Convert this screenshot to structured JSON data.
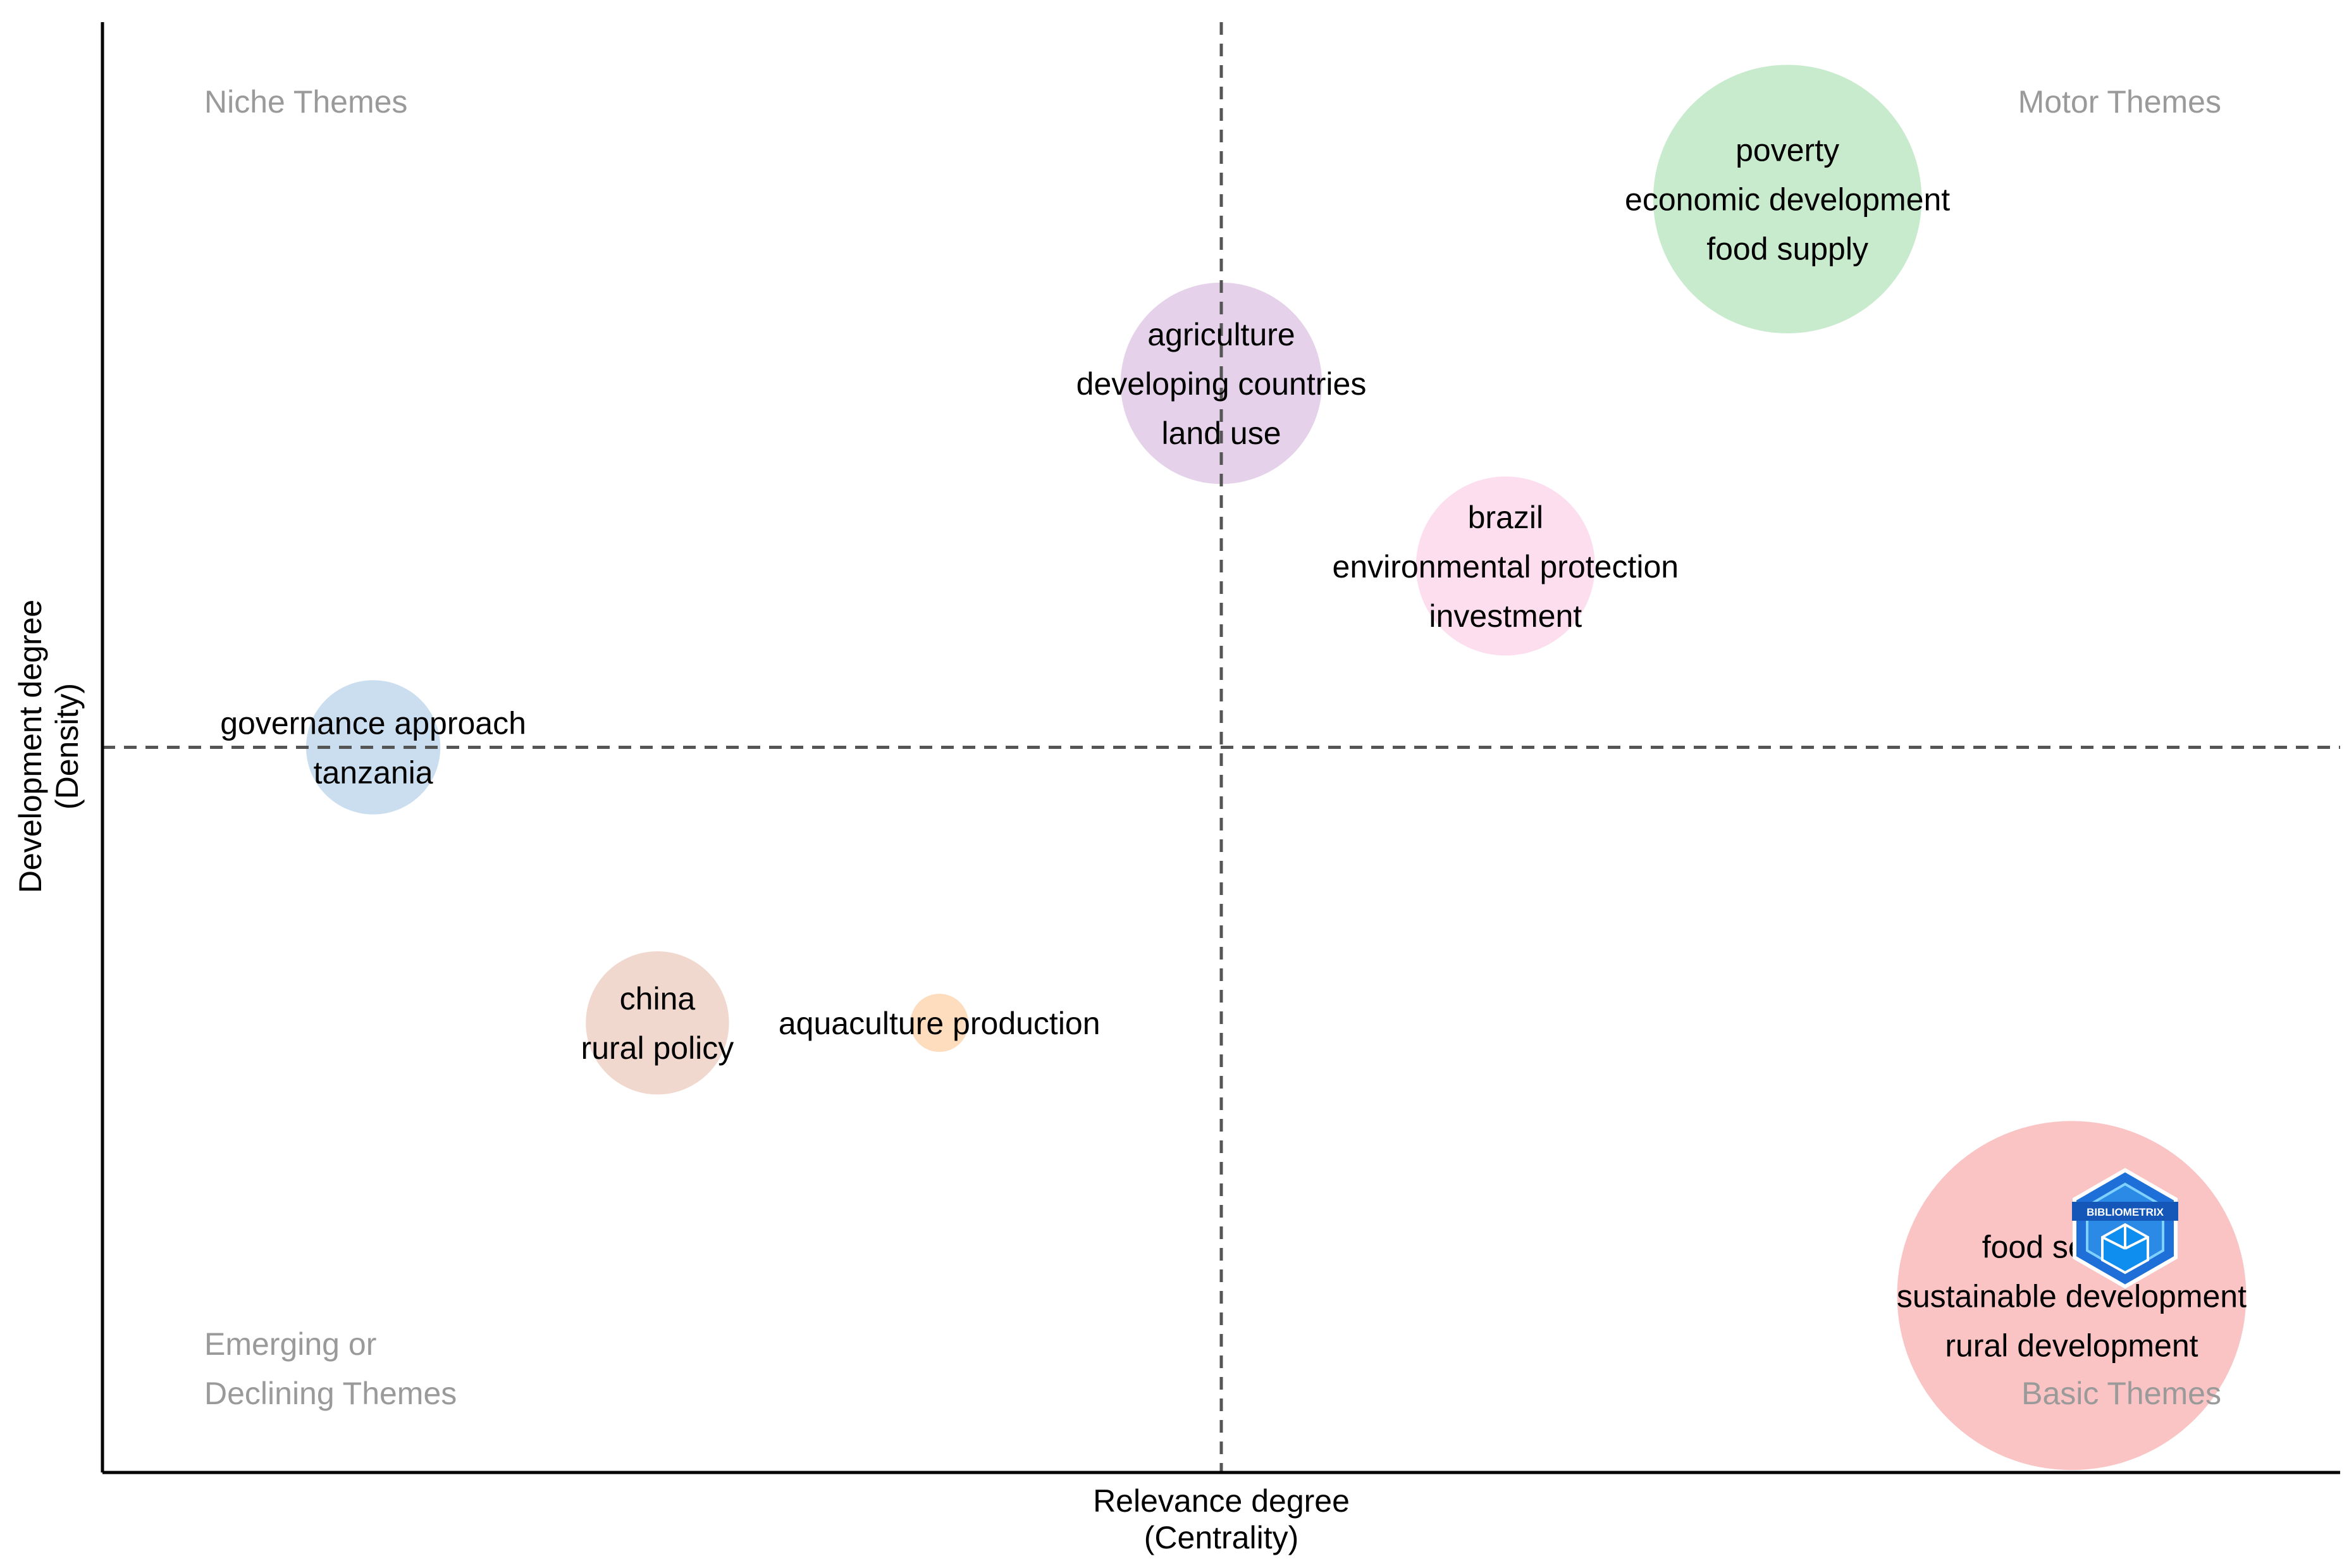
{
  "chart_data": {
    "type": "scatter",
    "subtype": "thematic-map",
    "xlabel_lines": [
      "Relevance degree",
      "(Centrality)"
    ],
    "ylabel_lines": [
      "Development degree",
      "(Density)"
    ],
    "x_range": [
      0,
      1
    ],
    "y_range": [
      0,
      1
    ],
    "x_divider": 0.5,
    "y_divider": 0.5,
    "quadrant_labels": [
      {
        "name": "niche",
        "lines": [
          "Niche Themes"
        ],
        "position": "top-left"
      },
      {
        "name": "motor",
        "lines": [
          "Motor Themes"
        ],
        "position": "top-right"
      },
      {
        "name": "emerging",
        "lines": [
          "Emerging or",
          "Declining Themes"
        ],
        "position": "bottom-left"
      },
      {
        "name": "basic",
        "lines": [
          "Basic Themes"
        ],
        "position": "bottom-right"
      }
    ],
    "clusters": [
      {
        "name": "poverty",
        "x": 0.753,
        "y": 0.878,
        "size": 0.06,
        "color": "#b7e4bc",
        "labels": [
          "poverty",
          "economic development",
          "food supply"
        ]
      },
      {
        "name": "agriculture",
        "x": 0.5,
        "y": 0.751,
        "size": 0.045,
        "color": "#dcc2e3",
        "labels": [
          "agriculture",
          "developing countries",
          "land use"
        ]
      },
      {
        "name": "brazil",
        "x": 0.627,
        "y": 0.625,
        "size": 0.04,
        "color": "#fbd3e9",
        "labels": [
          "brazil",
          "environmental protection",
          "investment"
        ]
      },
      {
        "name": "governance",
        "x": 0.121,
        "y": 0.5,
        "size": 0.03,
        "color": "#b8d3ea",
        "labels": [
          "governance approach",
          "tanzania"
        ]
      },
      {
        "name": "china",
        "x": 0.248,
        "y": 0.31,
        "size": 0.032,
        "color": "#eccbbd",
        "labels": [
          "china",
          "rural policy"
        ]
      },
      {
        "name": "aquaculture",
        "x": 0.374,
        "y": 0.31,
        "size": 0.013,
        "color": "#fdd0a8",
        "labels": [
          "aquaculture production"
        ]
      },
      {
        "name": "food-security",
        "x": 0.88,
        "y": 0.122,
        "size": 0.078,
        "color": "#f8b0b0",
        "labels": [
          "food security",
          "sustainable development",
          "rural development"
        ]
      }
    ],
    "watermark": {
      "text": "BIBLIOMETRIX"
    }
  }
}
